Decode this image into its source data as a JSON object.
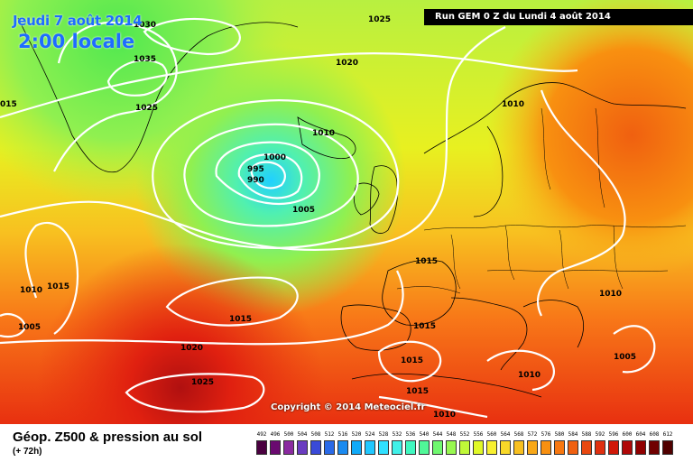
{
  "header": {
    "date": "Jeudi 7 août 2014",
    "time": "2:00 locale",
    "run": "Run GEM 0 Z du Lundi 4 août 2014"
  },
  "copyright": "Copyright © 2014 Meteociel.fr",
  "legend": {
    "title": "Géop. Z500 & pression au sol",
    "subtitle": "(+ 72h)",
    "ticks": [
      "492",
      "496",
      "500",
      "504",
      "508",
      "512",
      "516",
      "520",
      "524",
      "528",
      "532",
      "536",
      "540",
      "544",
      "548",
      "552",
      "556",
      "560",
      "564",
      "568",
      "572",
      "576",
      "580",
      "584",
      "588",
      "592",
      "596",
      "600",
      "604",
      "608",
      "612"
    ],
    "colors": [
      "#4a0040",
      "#6a0a70",
      "#8a2aa0",
      "#6a3cc0",
      "#3a4ad8",
      "#2a6ae8",
      "#1a8af0",
      "#10aaf8",
      "#20c8ff",
      "#30e0ff",
      "#40f0e8",
      "#40f8c0",
      "#50f898",
      "#70f870",
      "#98f850",
      "#c0f838",
      "#e0f828",
      "#f8f030",
      "#f8d828",
      "#f8c020",
      "#f8a818",
      "#f89010",
      "#f87810",
      "#f06010",
      "#e84810",
      "#e03010",
      "#d01808",
      "#b00808",
      "#900000",
      "#700000",
      "#500000"
    ]
  },
  "isobars": [
    {
      "label": "1030"
    },
    {
      "label": "1025"
    },
    {
      "label": "1035"
    },
    {
      "label": "1020"
    },
    {
      "label": "015"
    },
    {
      "label": "1025"
    },
    {
      "label": "1010"
    },
    {
      "label": "1000"
    },
    {
      "label": "995"
    },
    {
      "label": "990"
    },
    {
      "label": "1005"
    },
    {
      "label": "1010"
    },
    {
      "label": "1015"
    },
    {
      "label": "1010"
    },
    {
      "label": "1015"
    },
    {
      "label": "1005"
    },
    {
      "label": "1015"
    },
    {
      "label": "1020"
    },
    {
      "label": "1025"
    },
    {
      "label": "1015"
    },
    {
      "label": "1015"
    },
    {
      "label": "1015"
    },
    {
      "label": "1010"
    },
    {
      "label": "1010"
    },
    {
      "label": "1010"
    },
    {
      "label": "1005"
    },
    {
      "label": "1005"
    }
  ]
}
